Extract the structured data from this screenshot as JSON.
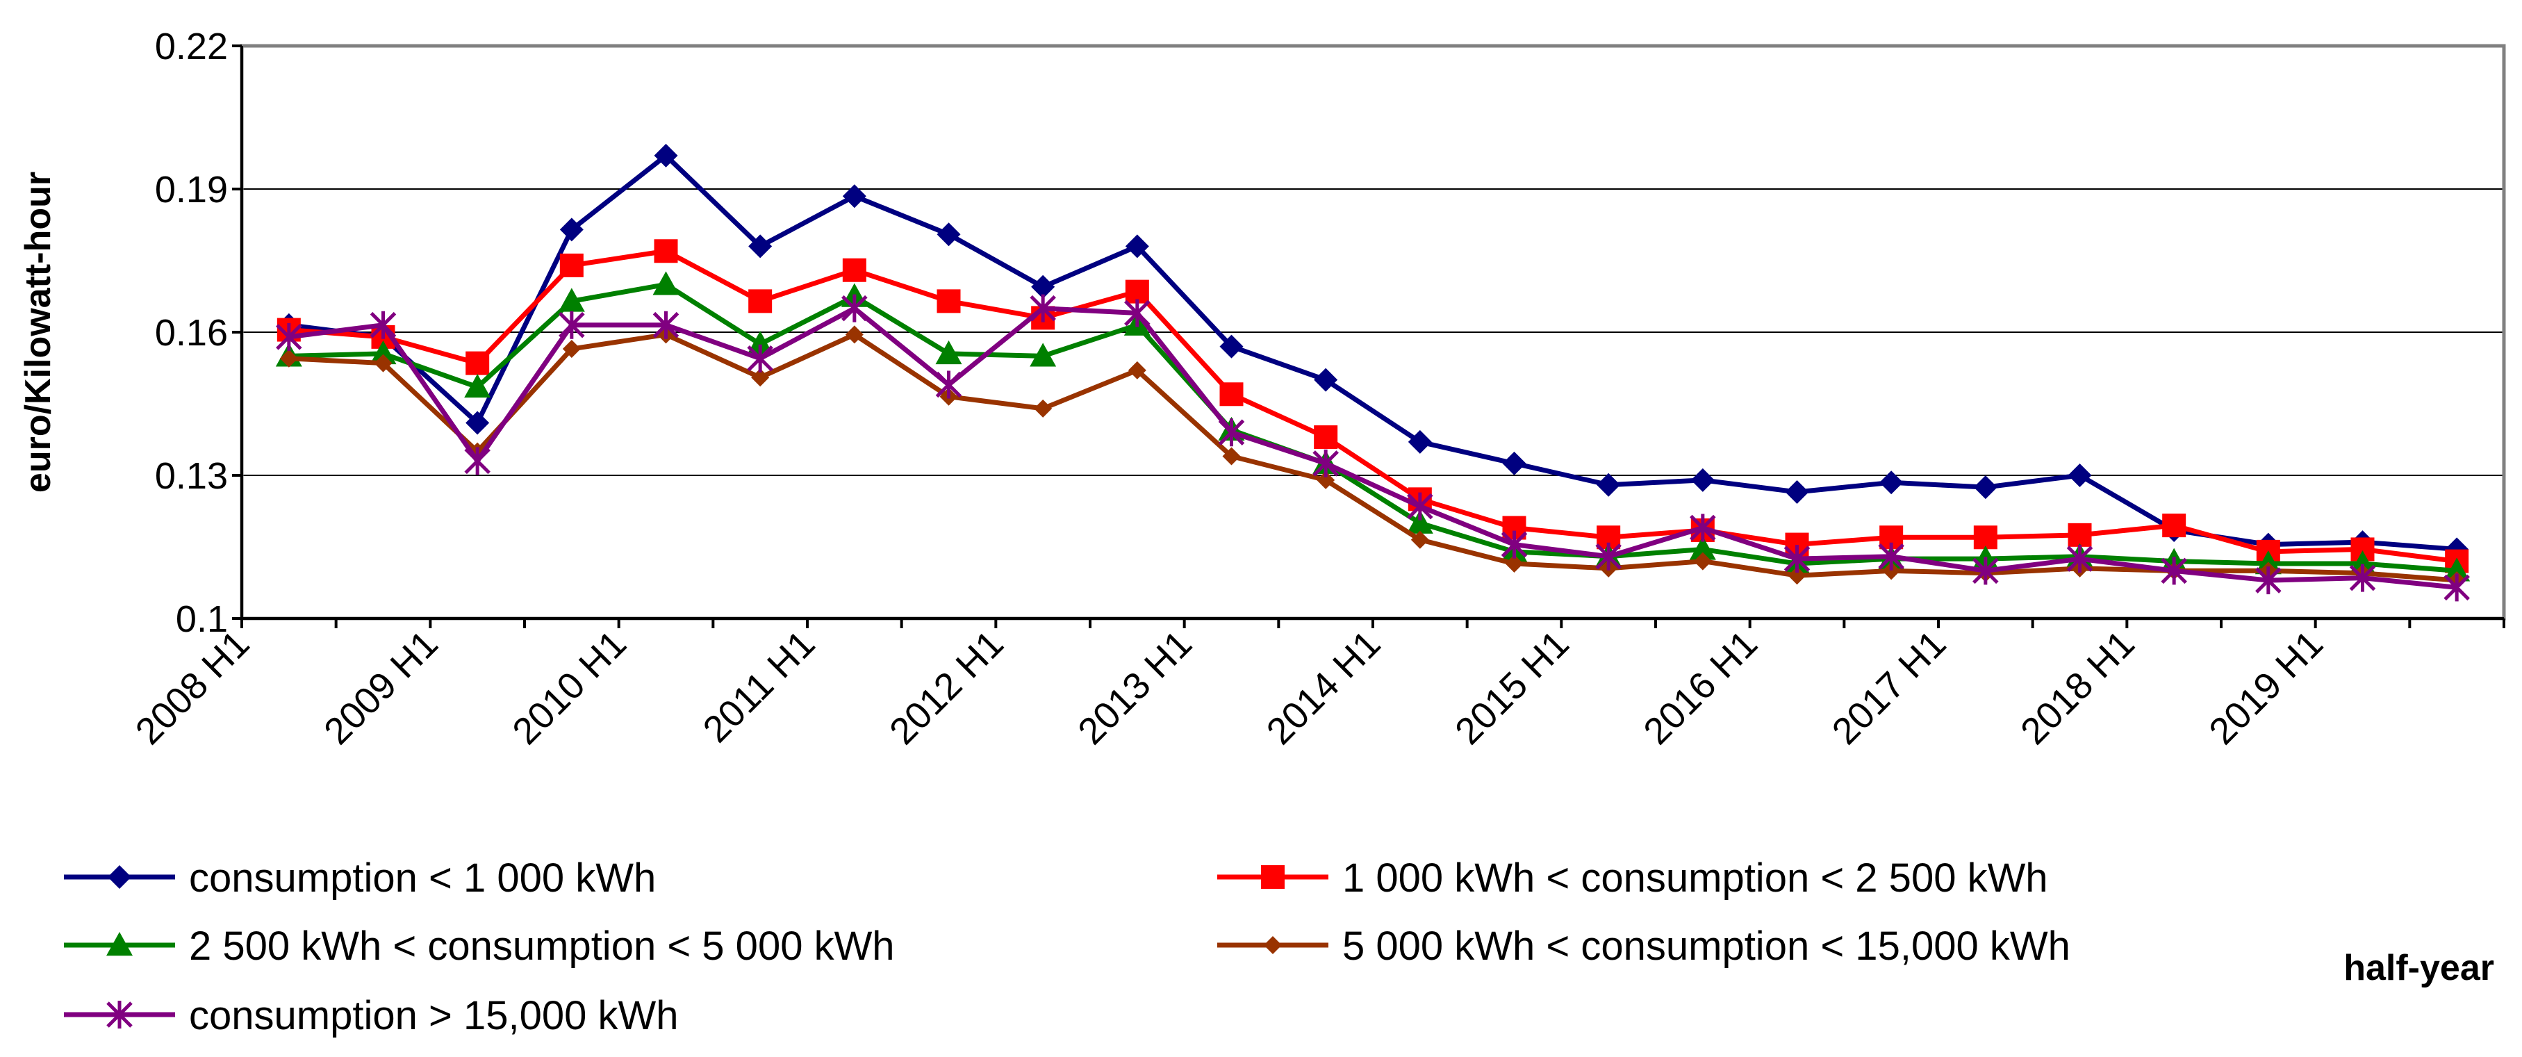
{
  "chart_data": {
    "type": "line",
    "title": "",
    "xlabel": "half-year",
    "ylabel": "euro/Kilowatt-hour",
    "ylim": [
      0.1,
      0.22
    ],
    "yticks": [
      "0.22",
      "0.19",
      "0.16",
      "0.13",
      "0.1"
    ],
    "ytick_values": [
      0.22,
      0.19,
      0.16,
      0.13,
      0.1
    ],
    "grid": true,
    "legend_position": "bottom",
    "x": [
      "2008 H1",
      "2008 H2",
      "2009 H1",
      "2009 H2",
      "2010 H1",
      "2010 H2",
      "2011 H1",
      "2011 H2",
      "2012 H1",
      "2012 H2",
      "2013 H1",
      "2013 H2",
      "2014 H1",
      "2014 H2",
      "2015 H1",
      "2015 H2",
      "2016 H1",
      "2016 H2",
      "2017 H1",
      "2017 H2",
      "2018 H1",
      "2018 H2",
      "2019 H1",
      "2019 H2"
    ],
    "x_tick_labels": [
      "2008 H1",
      "2009 H1",
      "2010 H1",
      "2011 H1",
      "2012 H1",
      "2013 H1",
      "2014 H1",
      "2015 H1",
      "2016 H1",
      "2017 H1",
      "2018 H1",
      "2019 H1"
    ],
    "series": [
      {
        "name": "consumption < 1 000 kWh",
        "color": "#000080",
        "marker": "diamond",
        "values": [
          0.1615,
          0.159,
          0.141,
          0.1815,
          0.197,
          0.178,
          0.1885,
          0.1805,
          0.1695,
          0.178,
          0.157,
          0.15,
          0.137,
          0.1325,
          0.128,
          0.129,
          0.1265,
          0.1285,
          0.1275,
          0.13,
          0.1185,
          0.1155,
          0.116,
          0.1145
        ]
      },
      {
        "name": "1 000 kWh < consumption < 2 500 kWh",
        "color": "#ff0000",
        "marker": "square",
        "values": [
          0.1605,
          0.159,
          0.1535,
          0.174,
          0.177,
          0.1665,
          0.173,
          0.1665,
          0.163,
          0.1685,
          0.147,
          0.138,
          0.125,
          0.119,
          0.117,
          0.1185,
          0.1155,
          0.117,
          0.117,
          0.1175,
          0.1195,
          0.114,
          0.1145,
          0.112
        ]
      },
      {
        "name": "2 500 kWh < consumption < 5 000 kWh",
        "color": "#008000",
        "marker": "triangle",
        "values": [
          0.155,
          0.1555,
          0.1485,
          0.1665,
          0.17,
          0.1575,
          0.1675,
          0.1555,
          0.155,
          0.1615,
          0.1395,
          0.1325,
          0.12,
          0.114,
          0.113,
          0.1145,
          0.1115,
          0.1125,
          0.1125,
          0.113,
          0.112,
          0.1115,
          0.1115,
          0.11
        ]
      },
      {
        "name": "5 000 kWh < consumption < 15,000 kWh",
        "color": "#993300",
        "marker": "diamond-small",
        "values": [
          0.1545,
          0.1535,
          0.135,
          0.1565,
          0.1595,
          0.1505,
          0.1595,
          0.1465,
          0.144,
          0.152,
          0.134,
          0.129,
          0.1165,
          0.1115,
          0.1105,
          0.112,
          0.109,
          0.11,
          0.1095,
          0.1105,
          0.11,
          0.11,
          0.1095,
          0.108
        ]
      },
      {
        "name": "consumption > 15,000 kWh",
        "color": "#800080",
        "marker": "asterisk",
        "values": [
          0.159,
          0.1615,
          0.133,
          0.1615,
          0.1615,
          0.1545,
          0.165,
          0.149,
          0.165,
          0.164,
          0.139,
          0.1325,
          0.1235,
          0.1155,
          0.113,
          0.119,
          0.1125,
          0.113,
          0.11,
          0.1125,
          0.11,
          0.108,
          0.1085,
          0.1065
        ]
      }
    ]
  }
}
